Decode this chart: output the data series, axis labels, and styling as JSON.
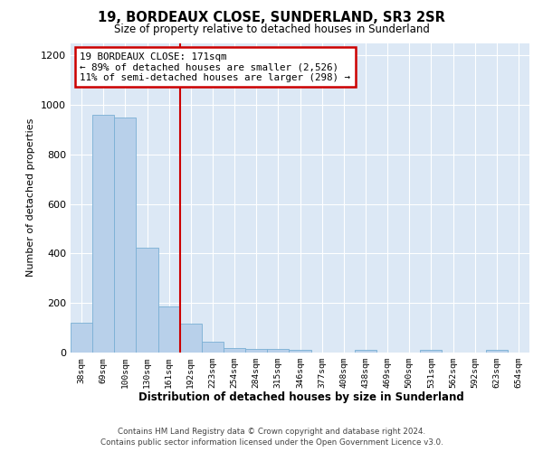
{
  "title": "19, BORDEAUX CLOSE, SUNDERLAND, SR3 2SR",
  "subtitle": "Size of property relative to detached houses in Sunderland",
  "xlabel": "Distribution of detached houses by size in Sunderland",
  "ylabel": "Number of detached properties",
  "categories": [
    "38sqm",
    "69sqm",
    "100sqm",
    "130sqm",
    "161sqm",
    "192sqm",
    "223sqm",
    "254sqm",
    "284sqm",
    "315sqm",
    "346sqm",
    "377sqm",
    "408sqm",
    "438sqm",
    "469sqm",
    "500sqm",
    "531sqm",
    "562sqm",
    "592sqm",
    "623sqm",
    "654sqm"
  ],
  "values": [
    120,
    960,
    950,
    425,
    185,
    115,
    45,
    18,
    15,
    15,
    10,
    0,
    0,
    10,
    0,
    0,
    10,
    0,
    0,
    10,
    0
  ],
  "bar_color": "#b8d0ea",
  "bar_edge_color": "#7aafd4",
  "annotation_text": "19 BORDEAUX CLOSE: 171sqm\n← 89% of detached houses are smaller (2,526)\n11% of semi-detached houses are larger (298) →",
  "annotation_box_color": "#ffffff",
  "annotation_box_edge_color": "#cc0000",
  "ylim": [
    0,
    1250
  ],
  "yticks": [
    0,
    200,
    400,
    600,
    800,
    1000,
    1200
  ],
  "bg_color": "#dce8f5",
  "footer_line1": "Contains HM Land Registry data © Crown copyright and database right 2024.",
  "footer_line2": "Contains public sector information licensed under the Open Government Licence v3.0."
}
